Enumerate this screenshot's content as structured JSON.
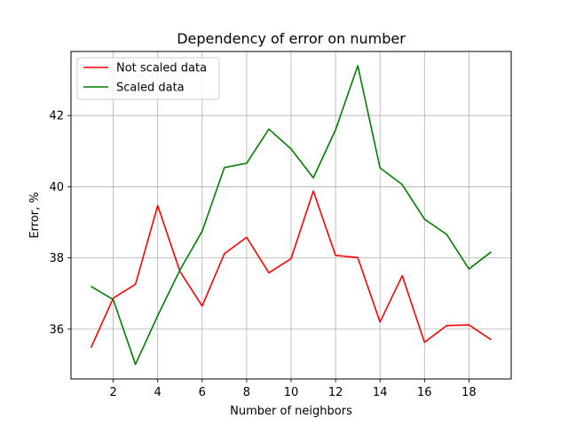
{
  "chart_data": {
    "type": "line",
    "title": "Dependency of error on number",
    "xlabel": "Number of neighbors",
    "ylabel": "Error, %",
    "x": [
      1,
      2,
      3,
      4,
      5,
      6,
      7,
      8,
      9,
      10,
      11,
      12,
      13,
      14,
      15,
      16,
      17,
      18,
      19
    ],
    "xticks": [
      "2",
      "4",
      "6",
      "8",
      "10",
      "12",
      "14",
      "16",
      "18"
    ],
    "yticks": [
      "36",
      "38",
      "40",
      "42"
    ],
    "xlim": [
      0.1,
      19.9
    ],
    "ylim": [
      34.6,
      43.8
    ],
    "grid": true,
    "legend_position": "upper-left",
    "series": [
      {
        "name": "Not scaled data",
        "color": "#ff0000",
        "values": [
          35.48,
          36.87,
          37.26,
          39.47,
          37.62,
          36.65,
          38.12,
          38.58,
          37.58,
          37.98,
          39.88,
          38.07,
          38.01,
          36.2,
          37.5,
          35.63,
          36.1,
          36.12,
          35.7
        ]
      },
      {
        "name": "Scaled data",
        "color": "#008000",
        "values": [
          37.2,
          36.83,
          35.01,
          36.38,
          37.66,
          38.75,
          40.54,
          40.66,
          41.62,
          41.06,
          40.25,
          41.6,
          43.4,
          40.53,
          40.06,
          39.09,
          38.66,
          37.69,
          38.17
        ]
      }
    ]
  }
}
